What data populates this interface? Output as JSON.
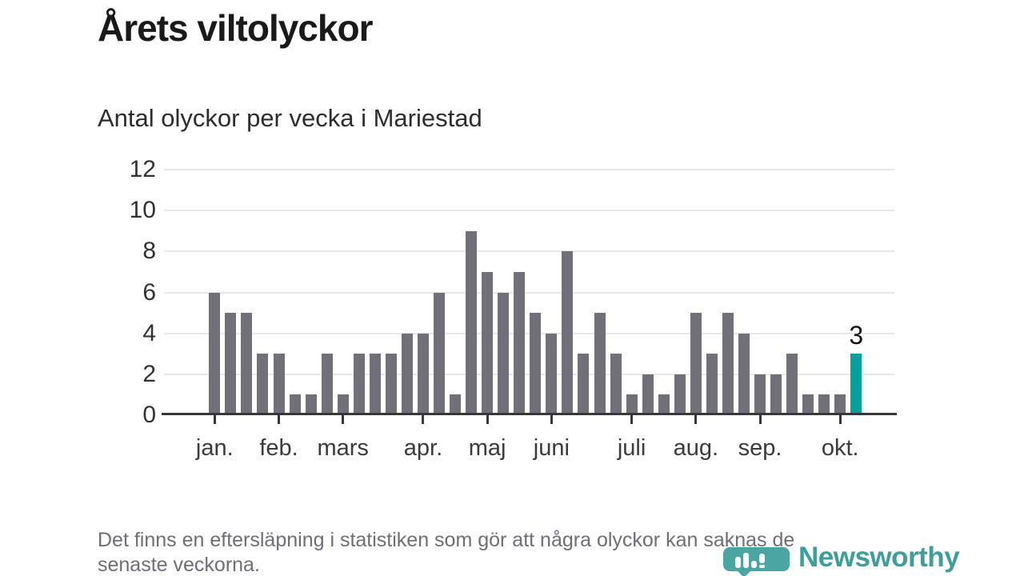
{
  "header": {
    "title": "Årets viltolyckor",
    "subtitle": "Antal olyckor per vecka i Mariestad"
  },
  "chart_data": {
    "type": "bar",
    "title": "Årets viltolyckor",
    "subtitle": "Antal olyckor per vecka i Mariestad",
    "x_unit": "vecka (weeks 1–41 of the year)",
    "values": [
      6,
      5,
      5,
      3,
      3,
      1,
      1,
      3,
      1,
      3,
      3,
      3,
      4,
      4,
      6,
      1,
      9,
      7,
      6,
      7,
      5,
      4,
      8,
      3,
      5,
      3,
      1,
      2,
      1,
      2,
      5,
      3,
      5,
      4,
      2,
      2,
      3,
      1,
      1,
      1,
      3
    ],
    "ylim": [
      0,
      12
    ],
    "y_ticks": [
      0,
      2,
      4,
      6,
      8,
      10,
      12
    ],
    "grid": "horizontal",
    "legend": "none",
    "months": [
      {
        "label": "jan.",
        "week_index": 0
      },
      {
        "label": "feb.",
        "week_index": 4
      },
      {
        "label": "mars",
        "week_index": 8
      },
      {
        "label": "apr.",
        "week_index": 13
      },
      {
        "label": "maj",
        "week_index": 17
      },
      {
        "label": "juni",
        "week_index": 21
      },
      {
        "label": "juli",
        "week_index": 26
      },
      {
        "label": "aug.",
        "week_index": 30
      },
      {
        "label": "sep.",
        "week_index": 34
      },
      {
        "label": "okt.",
        "week_index": 39
      }
    ],
    "highlight": {
      "index": 40,
      "value": 3,
      "label": "3",
      "color": "#00a39b"
    },
    "colors": {
      "bar": "#716f78",
      "highlight": "#00a39b",
      "gridline": "#e8e8e8",
      "axis": "#38383a"
    }
  },
  "footer": {
    "lines": [
      "Det finns en eftersläpning i statistiken som gör att några olyckor kan saknas de",
      "senaste veckorna."
    ]
  },
  "logo": {
    "text": "Newsworthy",
    "text_color": "#3e9e99",
    "pin_color": "#4ba5a0",
    "icon": "bar-chart-exclamation-pin"
  }
}
